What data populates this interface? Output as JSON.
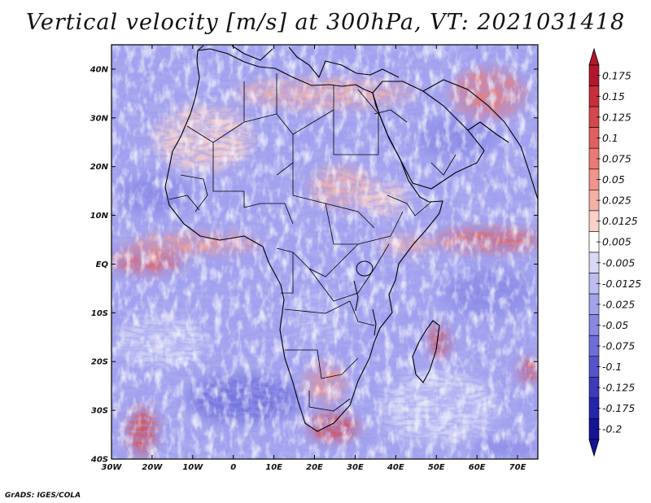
{
  "title": "Vertical velocity [m/s] at 300hPa, VT: 2021031418",
  "credit": "GrADS: IGES/COLA",
  "map": {
    "lon_range": [
      -30,
      75
    ],
    "lat_range": [
      -40,
      45
    ],
    "lat_ticks": [
      {
        "value": 40,
        "label": "40N"
      },
      {
        "value": 30,
        "label": "30N"
      },
      {
        "value": 20,
        "label": "20N"
      },
      {
        "value": 10,
        "label": "10N"
      },
      {
        "value": 0,
        "label": "EQ"
      },
      {
        "value": -10,
        "label": "10S"
      },
      {
        "value": -20,
        "label": "20S"
      },
      {
        "value": -30,
        "label": "30S"
      },
      {
        "value": -40,
        "label": "40S"
      }
    ],
    "lon_ticks": [
      {
        "value": -30,
        "label": "30W"
      },
      {
        "value": -20,
        "label": "20W"
      },
      {
        "value": -10,
        "label": "10W"
      },
      {
        "value": 0,
        "label": "0"
      },
      {
        "value": 10,
        "label": "10E"
      },
      {
        "value": 20,
        "label": "20E"
      },
      {
        "value": 30,
        "label": "30E"
      },
      {
        "value": 40,
        "label": "40E"
      },
      {
        "value": 50,
        "label": "50E"
      },
      {
        "value": 60,
        "label": "60E"
      },
      {
        "value": 70,
        "label": "70E"
      }
    ]
  },
  "colorbar": {
    "labels": [
      "0.175",
      "0.15",
      "0.125",
      "0.1",
      "0.075",
      "0.05",
      "0.025",
      "0.0125",
      "0.005",
      "-0.005",
      "-0.0125",
      "-0.025",
      "-0.05",
      "-0.075",
      "-0.1",
      "-0.125",
      "-0.175",
      "-0.2"
    ],
    "colors": [
      "#b2182b",
      "#c62f3b",
      "#d6474c",
      "#e0605f",
      "#ea7a74",
      "#f0958c",
      "#f5b0a5",
      "#fad0c8",
      "#ffffff",
      "#d9d9f6",
      "#bdbdf2",
      "#a3a3ec",
      "#8888e3",
      "#6e6ed8",
      "#5555ca",
      "#3c3cbb",
      "#2525aa",
      "#141496"
    ]
  },
  "colors": {
    "land_outline": "#000000"
  }
}
